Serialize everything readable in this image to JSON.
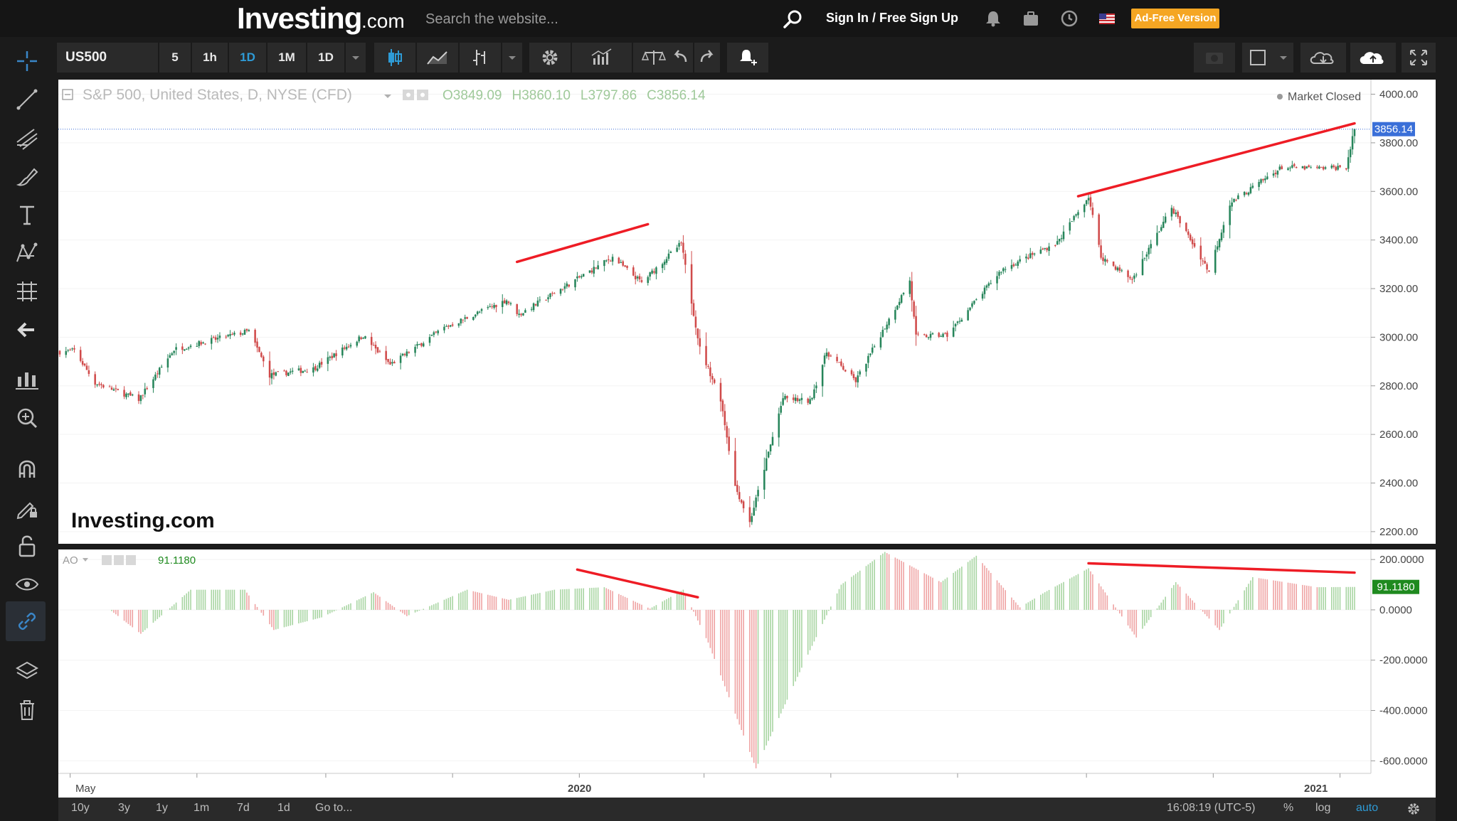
{
  "header": {
    "logo_text": "Investing",
    "logo_suffix": ".com",
    "search_placeholder": "Search the website...",
    "sign_in": "Sign In /",
    "free_sign_up": "Free Sign Up",
    "ad_free": "Ad-Free Version"
  },
  "toolbar": {
    "symbol": "US500",
    "intervals": [
      "5",
      "1h",
      "1D",
      "1M",
      "1D"
    ]
  },
  "main_chart": {
    "title": "S&P 500, United States, D, NYSE (CFD)",
    "ohlc": {
      "o_label": "O",
      "o": "3849.09",
      "h_label": "H",
      "h": "3860.10",
      "l_label": "L",
      "l": "3797.86",
      "c_label": "C",
      "c": "3856.14"
    },
    "market_status": "Market Closed",
    "last_price_label": "3856.14",
    "watermark": "Investing.com",
    "y_ticks": [
      "4000.00",
      "3800.00",
      "3600.00",
      "3400.00",
      "3200.00",
      "3000.00",
      "2800.00",
      "2600.00",
      "2400.00",
      "2200.00"
    ]
  },
  "ao_panel": {
    "name": "AO",
    "value": "91.1180",
    "last_value_label": "91.1180",
    "y_ticks": [
      "200.0000",
      "0.0000",
      "-200.0000",
      "-400.0000",
      "-600.0000"
    ]
  },
  "x_axis": {
    "labels": [
      "May",
      "2020",
      "2021"
    ]
  },
  "bottom_bar": {
    "ranges": [
      "10y",
      "3y",
      "1y",
      "1m",
      "7d",
      "1d"
    ],
    "goto": "Go to...",
    "time": "16:08:19 (UTC-5)",
    "percent": "%",
    "log": "log",
    "auto": "auto"
  },
  "colors": {
    "up": "#26855a",
    "down": "#d04a4a",
    "ao_up": "#a8d5a2",
    "ao_down": "#efa3a3",
    "trendline": "#ee1c25",
    "price_tag": "#3a6fd8",
    "ao_tag": "#1f8a1f",
    "accent": "#2e9bd6"
  },
  "chart_data": [
    {
      "type": "candlestick",
      "title": "S&P 500, United States, D, NYSE (CFD)",
      "x_start": "2019-04-26",
      "x_end": "2021-01-08",
      "ylim": [
        2150,
        4060
      ],
      "last_close": 3856.14,
      "anchors": [
        {
          "date": "2019-04-26",
          "close": 2940
        },
        {
          "date": "2019-05-03",
          "close": 2945
        },
        {
          "date": "2019-05-13",
          "close": 2812
        },
        {
          "date": "2019-06-03",
          "close": 2744
        },
        {
          "date": "2019-06-20",
          "close": 2950
        },
        {
          "date": "2019-07-26",
          "close": 3025
        },
        {
          "date": "2019-08-05",
          "close": 2844
        },
        {
          "date": "2019-08-26",
          "close": 2870
        },
        {
          "date": "2019-09-19",
          "close": 3006
        },
        {
          "date": "2019-10-02",
          "close": 2887
        },
        {
          "date": "2019-10-28",
          "close": 3039
        },
        {
          "date": "2019-11-27",
          "close": 3153
        },
        {
          "date": "2019-12-03",
          "close": 3093
        },
        {
          "date": "2020-01-17",
          "close": 3329
        },
        {
          "date": "2020-01-31",
          "close": 3225
        },
        {
          "date": "2020-02-19",
          "close": 3386
        },
        {
          "date": "2020-02-28",
          "close": 2954
        },
        {
          "date": "2020-03-09",
          "close": 2746
        },
        {
          "date": "2020-03-16",
          "close": 2386
        },
        {
          "date": "2020-03-23",
          "close": 2237
        },
        {
          "date": "2020-04-08",
          "close": 2749
        },
        {
          "date": "2020-04-21",
          "close": 2736
        },
        {
          "date": "2020-04-29",
          "close": 2939
        },
        {
          "date": "2020-05-13",
          "close": 2820
        },
        {
          "date": "2020-06-08",
          "close": 3232
        },
        {
          "date": "2020-06-11",
          "close": 3002
        },
        {
          "date": "2020-06-26",
          "close": 3009
        },
        {
          "date": "2020-07-22",
          "close": 3276
        },
        {
          "date": "2020-08-18",
          "close": 3390
        },
        {
          "date": "2020-09-02",
          "close": 3580
        },
        {
          "date": "2020-09-08",
          "close": 3331
        },
        {
          "date": "2020-09-23",
          "close": 3237
        },
        {
          "date": "2020-10-12",
          "close": 3534
        },
        {
          "date": "2020-10-30",
          "close": 3270
        },
        {
          "date": "2020-11-09",
          "close": 3550
        },
        {
          "date": "2020-12-04",
          "close": 3699
        },
        {
          "date": "2020-12-21",
          "close": 3694
        },
        {
          "date": "2021-01-04",
          "close": 3700
        },
        {
          "date": "2021-01-08",
          "close": 3856
        }
      ],
      "trendlines": [
        {
          "from": {
            "date": "2019-12-02",
            "value": 3310
          },
          "to": {
            "date": "2020-02-03",
            "value": 3465
          }
        },
        {
          "from": {
            "date": "2020-08-28",
            "value": 3580
          },
          "to": {
            "date": "2021-01-08",
            "value": 3880
          }
        }
      ]
    },
    {
      "type": "bar",
      "title": "AO",
      "x_start": "2019-04-26",
      "x_end": "2021-01-08",
      "ylim": [
        -650,
        240
      ],
      "last_value": 91.118,
      "anchors": [
        {
          "date": "2019-05-21",
          "value": -5
        },
        {
          "date": "2019-06-04",
          "value": -95
        },
        {
          "date": "2019-06-28",
          "value": 80
        },
        {
          "date": "2019-07-24",
          "value": 80
        },
        {
          "date": "2019-08-07",
          "value": -80
        },
        {
          "date": "2019-08-30",
          "value": -30
        },
        {
          "date": "2019-09-24",
          "value": 70
        },
        {
          "date": "2019-10-10",
          "value": -25
        },
        {
          "date": "2019-11-08",
          "value": 80
        },
        {
          "date": "2019-11-28",
          "value": 40
        },
        {
          "date": "2019-12-20",
          "value": 80
        },
        {
          "date": "2020-01-13",
          "value": 90
        },
        {
          "date": "2020-02-04",
          "value": 5
        },
        {
          "date": "2020-02-20",
          "value": 80
        },
        {
          "date": "2020-03-03",
          "value": -130
        },
        {
          "date": "2020-03-26",
          "value": -630
        },
        {
          "date": "2020-04-17",
          "value": -230
        },
        {
          "date": "2020-05-06",
          "value": 100
        },
        {
          "date": "2020-05-27",
          "value": 230
        },
        {
          "date": "2020-06-23",
          "value": 110
        },
        {
          "date": "2020-07-10",
          "value": 215
        },
        {
          "date": "2020-07-31",
          "value": 10
        },
        {
          "date": "2020-08-12",
          "value": 70
        },
        {
          "date": "2020-09-02",
          "value": 165
        },
        {
          "date": "2020-09-25",
          "value": -110
        },
        {
          "date": "2020-10-14",
          "value": 110
        },
        {
          "date": "2020-11-04",
          "value": -80
        },
        {
          "date": "2020-11-20",
          "value": 130
        },
        {
          "date": "2020-12-21",
          "value": 90
        },
        {
          "date": "2021-01-08",
          "value": 91.1
        }
      ],
      "trendlines": [
        {
          "from": {
            "date": "2019-12-31",
            "value": 160
          },
          "to": {
            "date": "2020-02-27",
            "value": 50
          }
        },
        {
          "from": {
            "date": "2020-09-02",
            "value": 185
          },
          "to": {
            "date": "2021-01-08",
            "value": 148
          }
        }
      ]
    }
  ]
}
